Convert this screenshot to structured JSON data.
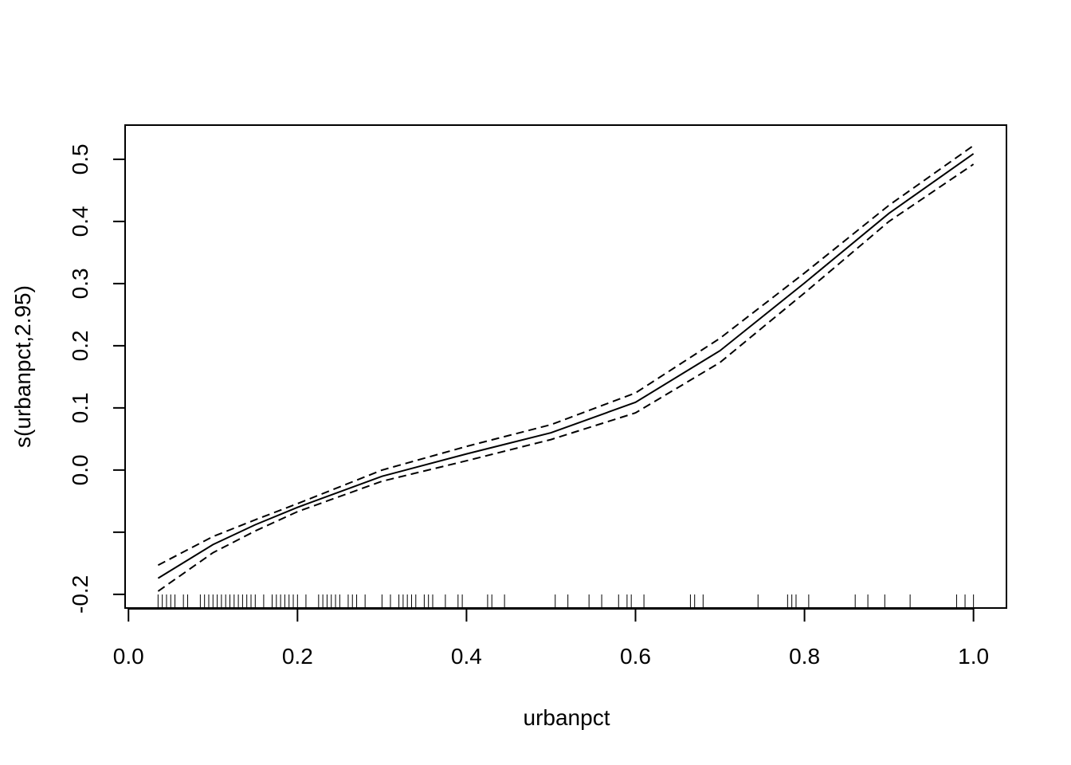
{
  "chart_data": {
    "type": "line",
    "xlabel": "urbanpct",
    "ylabel": "s(urbanpct,2.95)",
    "x": [
      0.035,
      0.1,
      0.15,
      0.2,
      0.3,
      0.4,
      0.5,
      0.6,
      0.7,
      0.8,
      0.9,
      1.0
    ],
    "series": [
      {
        "color": "#000000",
        "linestyle": "solid",
        "values": [
          -0.174,
          -0.12,
          -0.088,
          -0.06,
          -0.01,
          0.026,
          0.06,
          0.109,
          0.192,
          0.301,
          0.413,
          0.509
        ]
      },
      {
        "color": "#000000",
        "linestyle": "dashed",
        "values": [
          -0.153,
          -0.107,
          -0.08,
          -0.054,
          0.0,
          0.038,
          0.073,
          0.124,
          0.212,
          0.317,
          0.426,
          0.522
        ]
      },
      {
        "color": "#000000",
        "linestyle": "dashed",
        "values": [
          -0.195,
          -0.133,
          -0.098,
          -0.067,
          -0.018,
          0.015,
          0.049,
          0.092,
          0.173,
          0.285,
          0.4,
          0.492
        ]
      }
    ],
    "rug": [
      0.035,
      0.04,
      0.045,
      0.05,
      0.055,
      0.065,
      0.07,
      0.085,
      0.09,
      0.095,
      0.1,
      0.105,
      0.11,
      0.115,
      0.12,
      0.125,
      0.13,
      0.135,
      0.14,
      0.145,
      0.15,
      0.16,
      0.17,
      0.175,
      0.18,
      0.185,
      0.19,
      0.195,
      0.2,
      0.21,
      0.225,
      0.23,
      0.235,
      0.24,
      0.245,
      0.25,
      0.26,
      0.265,
      0.27,
      0.28,
      0.3,
      0.31,
      0.32,
      0.325,
      0.33,
      0.335,
      0.34,
      0.35,
      0.355,
      0.36,
      0.375,
      0.39,
      0.395,
      0.425,
      0.43,
      0.445,
      0.505,
      0.52,
      0.545,
      0.56,
      0.58,
      0.59,
      0.595,
      0.61,
      0.665,
      0.67,
      0.68,
      0.745,
      0.78,
      0.785,
      0.79,
      0.805,
      0.86,
      0.875,
      0.895,
      0.925,
      0.98,
      0.99,
      1.0
    ],
    "xlim": [
      -0.004,
      1.039
    ],
    "ylim": [
      -0.222,
      0.555
    ],
    "xticks": [
      {
        "value": 0,
        "label": "0.0"
      },
      0.2,
      0.4,
      0.6,
      0.8,
      {
        "value": 1,
        "label": "1.0"
      }
    ],
    "yticks": [
      {
        "value": -0.2,
        "label": "-0.2"
      },
      {
        "value": -0.1,
        "label": null
      },
      {
        "value": 0,
        "label": "0.0"
      },
      0.1,
      0.2,
      0.3,
      0.4,
      0.5
    ],
    "grid": false
  }
}
